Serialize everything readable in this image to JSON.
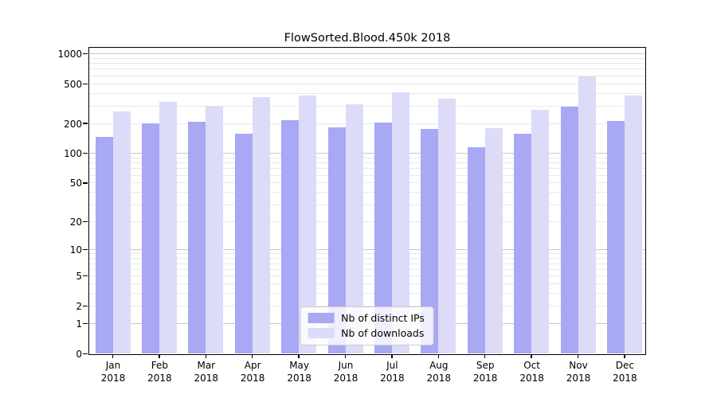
{
  "chart_data": {
    "type": "bar",
    "title": "FlowSorted.Blood.450k 2018",
    "categories": [
      "Jan",
      "Feb",
      "Mar",
      "Apr",
      "May",
      "Jun",
      "Jul",
      "Aug",
      "Sep",
      "Oct",
      "Nov",
      "Dec"
    ],
    "category_year": "2018",
    "x_tick_labels": [
      "Jan 2018",
      "Feb 2018",
      "Mar 2018",
      "Apr 2018",
      "May 2018",
      "Jun 2018",
      "Jul 2018",
      "Aug 2018",
      "Sep 2018",
      "Oct 2018",
      "Nov 2018",
      "Dec 2018"
    ],
    "series": [
      {
        "name": "Nb of distinct IPs",
        "color": "#a8a8f5",
        "values": [
          147,
          199,
          207,
          158,
          215,
          182,
          203,
          176,
          116,
          158,
          295,
          210
        ]
      },
      {
        "name": "Nb of downloads",
        "color": "#dcdcf8",
        "values": [
          265,
          328,
          298,
          365,
          383,
          314,
          408,
          357,
          181,
          273,
          588,
          378
        ]
      }
    ],
    "yscale": "log10(1+x)",
    "ylim": [
      0,
      1000
    ],
    "yticks": [
      0,
      1,
      2,
      5,
      10,
      20,
      50,
      100,
      200,
      500,
      1000
    ],
    "grid": true,
    "minor_grid_values": [
      2,
      3,
      4,
      5,
      6,
      7,
      8,
      9,
      20,
      30,
      40,
      50,
      60,
      70,
      80,
      90,
      200,
      300,
      400,
      500,
      600,
      700,
      800,
      900
    ],
    "major_grid_values": [
      1,
      10,
      100,
      1000
    ],
    "legend_position": "lower center inside",
    "colors": {
      "axis": "#000000",
      "major_grid": "#c7c7c7",
      "minor_grid": "#e9e9e9",
      "background": "#ffffff"
    }
  }
}
